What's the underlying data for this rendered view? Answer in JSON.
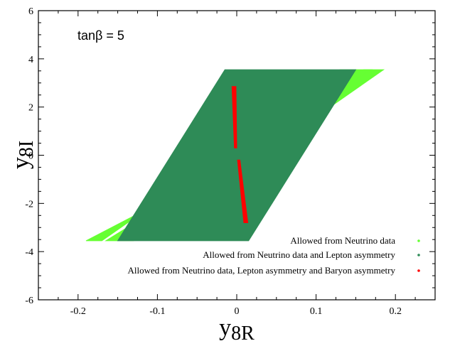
{
  "chart_data": {
    "type": "scatter",
    "title": "",
    "xlabel_main": "y",
    "xlabel_sub": "8R",
    "ylabel_main": "y",
    "ylabel_sub": "8I",
    "xlim": [
      -0.25,
      0.25
    ],
    "ylim": [
      -6,
      6
    ],
    "x_ticks": [
      -0.2,
      -0.1,
      0,
      0.1,
      0.2
    ],
    "x_tick_labels": [
      "-0.2",
      "-0.1",
      "0",
      "0.1",
      "0.2"
    ],
    "y_ticks": [
      -6,
      -4,
      -2,
      0,
      2,
      4,
      6
    ],
    "y_tick_labels": [
      "-6",
      "-4",
      "-2",
      "0",
      "2",
      "4",
      "6"
    ],
    "annotation": "tanβ = 5",
    "legend_position": "bottom-right",
    "series": [
      {
        "name": "Allowed from Neutrino data",
        "color": "#66ff33",
        "regions": [
          [
            [
              -0.19,
              -3.55
            ],
            [
              -0.17,
              -3.55
            ],
            [
              -0.05,
              -0.8
            ],
            [
              0.16,
              3.55
            ],
            [
              0.185,
              3.55
            ],
            [
              0.07,
              0.9
            ]
          ],
          [
            [
              -0.165,
              -3.55
            ],
            [
              -0.13,
              -3.55
            ],
            [
              -0.04,
              -0.5
            ],
            [
              0.03,
              0.8
            ],
            [
              0.17,
              3.55
            ],
            [
              0.13,
              3.55
            ],
            [
              0.04,
              1.0
            ],
            [
              -0.05,
              -1.2
            ]
          ]
        ]
      },
      {
        "name": "Allowed from Neutrino data and Lepton asymmetry",
        "color": "#2e8b57",
        "regions": [
          [
            [
              -0.15,
              -3.55
            ],
            [
              0.015,
              -3.55
            ],
            [
              0.15,
              3.55
            ],
            [
              -0.015,
              3.55
            ]
          ]
        ]
      },
      {
        "name": "Allowed from Neutrino data, Lepton asymmetry and Baryon asymmetry",
        "color": "#ff0000",
        "regions": [
          [
            [
              -0.006,
              2.85
            ],
            [
              -0.001,
              2.85
            ],
            [
              0.0,
              0.3
            ],
            [
              -0.003,
              0.3
            ]
          ],
          [
            [
              0.001,
              -0.2
            ],
            [
              0.004,
              -0.2
            ],
            [
              0.014,
              -2.8
            ],
            [
              0.009,
              -2.8
            ]
          ]
        ]
      }
    ]
  }
}
